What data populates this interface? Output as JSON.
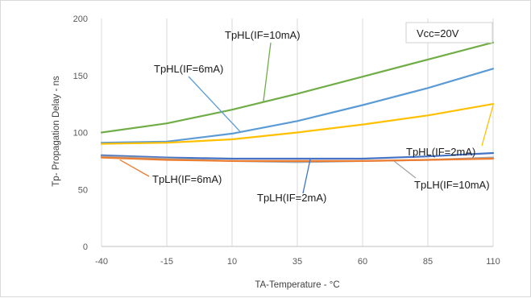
{
  "chart_data": {
    "type": "line",
    "title": "",
    "xlabel": "TA-Temperature - °C",
    "ylabel": "Tp- Propagation Delay - ns",
    "xlim": [
      -40,
      110
    ],
    "ylim": [
      0,
      200
    ],
    "xticks": [
      -40,
      -15,
      10,
      35,
      60,
      85,
      110
    ],
    "yticks": [
      0,
      50,
      100,
      150,
      200
    ],
    "grid": "vertical",
    "legend": "none",
    "note": "Vcc=20V",
    "series": [
      {
        "name": "TpHL(IF=10mA)",
        "color": "#70ad47",
        "x": [
          -40,
          -15,
          10,
          35,
          60,
          85,
          110
        ],
        "y": [
          100,
          108,
          120,
          134,
          149,
          164,
          179
        ]
      },
      {
        "name": "TpHL(IF=6mA)",
        "color": "#5b9bd5",
        "x": [
          -40,
          -15,
          10,
          35,
          60,
          85,
          110
        ],
        "y": [
          91,
          92,
          99,
          110,
          124,
          139,
          156
        ]
      },
      {
        "name": "TpHL(IF=2mA)",
        "color": "#ffc000",
        "x": [
          -40,
          -15,
          10,
          35,
          60,
          85,
          110
        ],
        "y": [
          90,
          91,
          94,
          100,
          107,
          115,
          125
        ]
      },
      {
        "name": "TpLH(IF=2mA)",
        "color": "#4472c4",
        "x": [
          -40,
          -15,
          10,
          35,
          60,
          85,
          110
        ],
        "y": [
          80,
          78,
          77,
          77,
          77,
          79,
          82
        ]
      },
      {
        "name": "TpLH(IF=10mA)",
        "color": "#a5a5a5",
        "x": [
          -40,
          -15,
          10,
          35,
          60,
          85,
          110
        ],
        "y": [
          79,
          77,
          75,
          74,
          75,
          76,
          78
        ]
      },
      {
        "name": "TpLH(IF=6mA)",
        "color": "#ed7d31",
        "x": [
          -40,
          -15,
          10,
          35,
          60,
          85,
          110
        ],
        "y": [
          78,
          76,
          75,
          75,
          75,
          76,
          77
        ]
      }
    ]
  }
}
